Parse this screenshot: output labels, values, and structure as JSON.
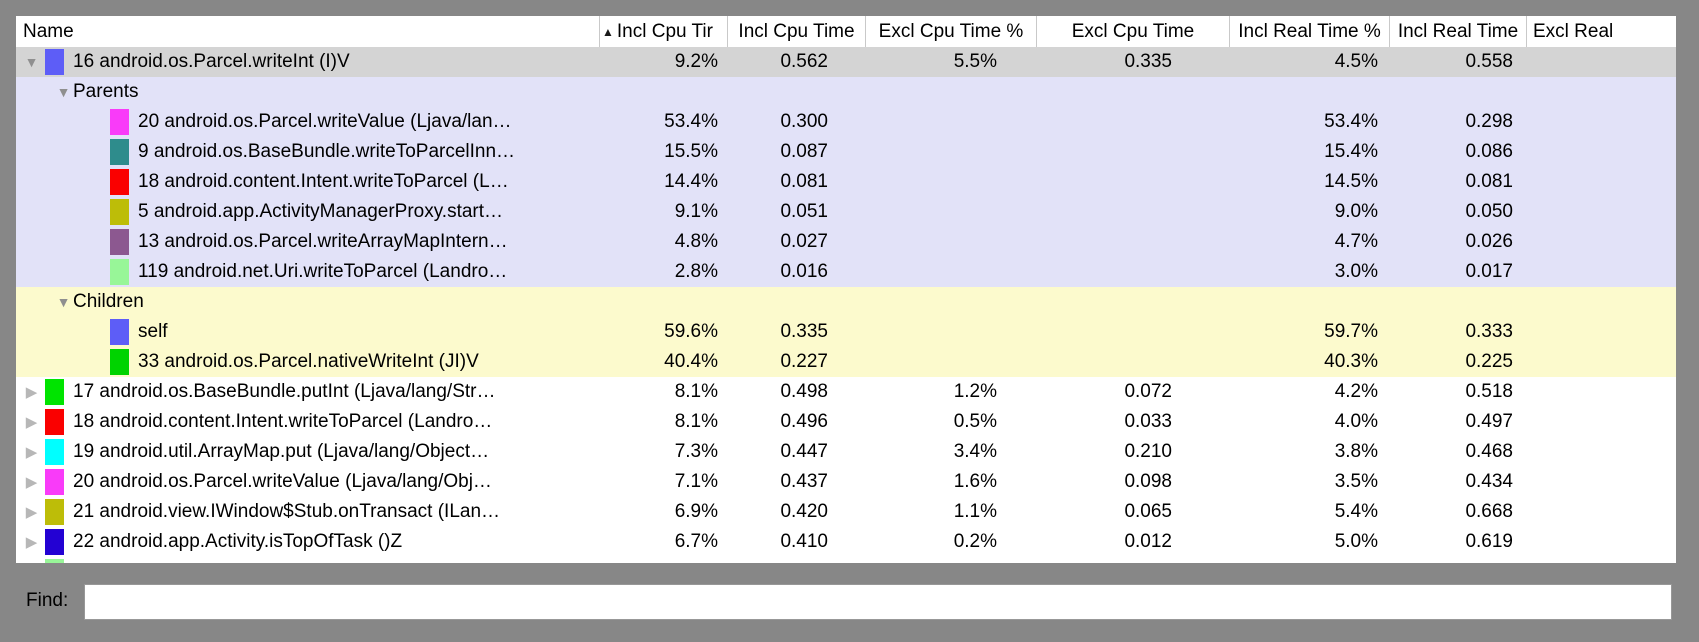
{
  "find": {
    "label": "Find:",
    "value": ""
  },
  "colors": {
    "frame": "#878787",
    "selected_row": "#d4d4d4",
    "parents_section_bg": "#e2e2f8",
    "children_section_bg": "#fcfacd",
    "header_separator": "#c9c9c9"
  },
  "table": {
    "columns": [
      {
        "key": "name",
        "label": "Name"
      },
      {
        "key": "incl_cpu_pct",
        "label": "Incl Cpu Tir",
        "sorted": "asc"
      },
      {
        "key": "incl_cpu_time",
        "label": "Incl Cpu Time"
      },
      {
        "key": "excl_cpu_pct",
        "label": "Excl Cpu Time %"
      },
      {
        "key": "excl_cpu_time",
        "label": "Excl Cpu Time"
      },
      {
        "key": "incl_real_pct",
        "label": "Incl Real Time %"
      },
      {
        "key": "incl_real_time",
        "label": "Incl Real Time"
      },
      {
        "key": "excl_real",
        "label": "Excl Real",
        "truncated": true
      }
    ],
    "rows": [
      {
        "type": "method",
        "selected": true,
        "disclosure": "expanded",
        "chip": "#5d5df7",
        "name": "16 android.os.Parcel.writeInt (I)V",
        "values": {
          "incl_cpu_pct": "9.2%",
          "incl_cpu_time": "0.562",
          "excl_cpu_pct": "5.5%",
          "excl_cpu_time": "0.335",
          "incl_real_pct": "4.5%",
          "incl_real_time": "0.558"
        }
      },
      {
        "type": "section",
        "bg": "parents",
        "disclosure": "expanded",
        "name": "Parents",
        "values": {}
      },
      {
        "type": "sub",
        "bg": "parents",
        "chip": "#f93bf9",
        "name": "20 android.os.Parcel.writeValue (Ljava/lan…",
        "values": {
          "incl_cpu_pct": "53.4%",
          "incl_cpu_time": "0.300",
          "incl_real_pct": "53.4%",
          "incl_real_time": "0.298"
        }
      },
      {
        "type": "sub",
        "bg": "parents",
        "chip": "#2e8c8c",
        "name": "9 android.os.BaseBundle.writeToParcelInn…",
        "values": {
          "incl_cpu_pct": "15.5%",
          "incl_cpu_time": "0.087",
          "incl_real_pct": "15.4%",
          "incl_real_time": "0.086"
        }
      },
      {
        "type": "sub",
        "bg": "parents",
        "chip": "#fa0000",
        "name": "18 android.content.Intent.writeToParcel (L…",
        "values": {
          "incl_cpu_pct": "14.4%",
          "incl_cpu_time": "0.081",
          "incl_real_pct": "14.5%",
          "incl_real_time": "0.081"
        }
      },
      {
        "type": "sub",
        "bg": "parents",
        "chip": "#bdbd08",
        "name": "5 android.app.ActivityManagerProxy.start…",
        "values": {
          "incl_cpu_pct": "9.1%",
          "incl_cpu_time": "0.051",
          "incl_real_pct": "9.0%",
          "incl_real_time": "0.050"
        }
      },
      {
        "type": "sub",
        "bg": "parents",
        "chip": "#8c5890",
        "name": "13 android.os.Parcel.writeArrayMapIntern…",
        "values": {
          "incl_cpu_pct": "4.8%",
          "incl_cpu_time": "0.027",
          "incl_real_pct": "4.7%",
          "incl_real_time": "0.026"
        }
      },
      {
        "type": "sub",
        "bg": "parents",
        "chip": "#98f698",
        "name": "119 android.net.Uri.writeToParcel (Landro…",
        "values": {
          "incl_cpu_pct": "2.8%",
          "incl_cpu_time": "0.016",
          "incl_real_pct": "3.0%",
          "incl_real_time": "0.017"
        }
      },
      {
        "type": "section",
        "bg": "children",
        "disclosure": "expanded",
        "name": "Children",
        "values": {}
      },
      {
        "type": "sub",
        "bg": "children",
        "chip": "#5d5df7",
        "name": "self",
        "values": {
          "incl_cpu_pct": "59.6%",
          "incl_cpu_time": "0.335",
          "incl_real_pct": "59.7%",
          "incl_real_time": "0.333"
        }
      },
      {
        "type": "sub",
        "bg": "children",
        "chip": "#00d300",
        "name": "33 android.os.Parcel.nativeWriteInt (JI)V",
        "values": {
          "incl_cpu_pct": "40.4%",
          "incl_cpu_time": "0.227",
          "incl_real_pct": "40.3%",
          "incl_real_time": "0.225"
        }
      },
      {
        "type": "method",
        "disclosure": "collapsed",
        "chip": "#00e400",
        "name": "17 android.os.BaseBundle.putInt (Ljava/lang/Str…",
        "values": {
          "incl_cpu_pct": "8.1%",
          "incl_cpu_time": "0.498",
          "excl_cpu_pct": "1.2%",
          "excl_cpu_time": "0.072",
          "incl_real_pct": "4.2%",
          "incl_real_time": "0.518"
        }
      },
      {
        "type": "method",
        "disclosure": "collapsed",
        "chip": "#fa0000",
        "name": "18 android.content.Intent.writeToParcel (Landro…",
        "values": {
          "incl_cpu_pct": "8.1%",
          "incl_cpu_time": "0.496",
          "excl_cpu_pct": "0.5%",
          "excl_cpu_time": "0.033",
          "incl_real_pct": "4.0%",
          "incl_real_time": "0.497"
        }
      },
      {
        "type": "method",
        "disclosure": "collapsed",
        "chip": "#00ffff",
        "name": "19 android.util.ArrayMap.put (Ljava/lang/Object…",
        "values": {
          "incl_cpu_pct": "7.3%",
          "incl_cpu_time": "0.447",
          "excl_cpu_pct": "3.4%",
          "excl_cpu_time": "0.210",
          "incl_real_pct": "3.8%",
          "incl_real_time": "0.468"
        }
      },
      {
        "type": "method",
        "disclosure": "collapsed",
        "chip": "#f93bf9",
        "name": "20 android.os.Parcel.writeValue (Ljava/lang/Obj…",
        "values": {
          "incl_cpu_pct": "7.1%",
          "incl_cpu_time": "0.437",
          "excl_cpu_pct": "1.6%",
          "excl_cpu_time": "0.098",
          "incl_real_pct": "3.5%",
          "incl_real_time": "0.434"
        }
      },
      {
        "type": "method",
        "disclosure": "collapsed",
        "chip": "#bdbd08",
        "name": "21 android.view.IWindow$Stub.onTransact (ILan…",
        "values": {
          "incl_cpu_pct": "6.9%",
          "incl_cpu_time": "0.420",
          "excl_cpu_pct": "1.1%",
          "excl_cpu_time": "0.065",
          "incl_real_pct": "5.4%",
          "incl_real_time": "0.668"
        }
      },
      {
        "type": "method",
        "disclosure": "collapsed",
        "chip": "#2301d3",
        "name": "22 android.app.Activity.isTopOfTask ()Z",
        "values": {
          "incl_cpu_pct": "6.7%",
          "incl_cpu_time": "0.410",
          "excl_cpu_pct": "0.2%",
          "excl_cpu_time": "0.012",
          "incl_real_pct": "5.0%",
          "incl_real_time": "0.619"
        }
      },
      {
        "type": "partial",
        "disclosure": "collapsed",
        "chip": "#98f698",
        "name": "",
        "values": {}
      }
    ]
  }
}
